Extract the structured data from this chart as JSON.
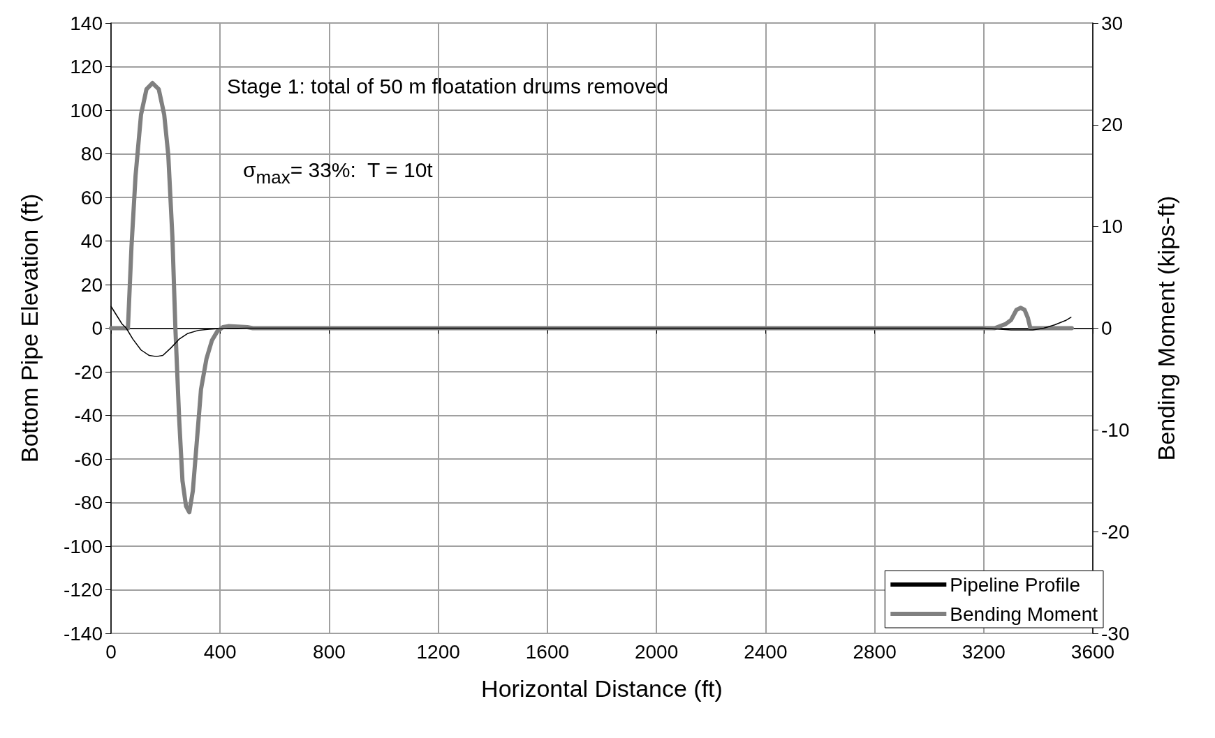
{
  "chart_data": {
    "type": "line",
    "xlabel": "Horizontal Distance (ft)",
    "ylabel": "Bottom Pipe Elevation (ft)",
    "y2label": "Bending Moment (kips-ft)",
    "annotations": [
      "Stage 1: total of 50 m floatation drums removed",
      "σ$_{max}$= 33%:  T = 10t"
    ],
    "xlim": [
      0,
      3600
    ],
    "xticks": [
      0,
      400,
      800,
      1200,
      1600,
      2000,
      2400,
      2800,
      3200,
      3600
    ],
    "ylim": [
      -140,
      140
    ],
    "yticks": [
      -140,
      -120,
      -100,
      -80,
      -60,
      -40,
      -20,
      0,
      20,
      40,
      60,
      80,
      100,
      120,
      140
    ],
    "y2lim": [
      -30,
      30
    ],
    "y2ticks": [
      -30,
      -20,
      -10,
      0,
      10,
      20,
      30
    ],
    "grid": true,
    "legend": "bottom right",
    "marker": "none",
    "line_style": "solid",
    "series": [
      {
        "name": "Pipeline Profile",
        "color": "#000000",
        "x": [
          0,
          20,
          40,
          56,
          80,
          110,
          140,
          166,
          190,
          220,
          250,
          280,
          320,
          360,
          400,
          500,
          3200,
          3300,
          3380,
          3420,
          3460,
          3500,
          3520
        ],
        "values": [
          10,
          6,
          2,
          0,
          -5,
          -10,
          -12.5,
          -13,
          -12.5,
          -9,
          -5,
          -2.5,
          -1,
          -0.5,
          -0.2,
          0,
          0,
          -0.8,
          -0.8,
          0,
          1.5,
          3.5,
          5
        ]
      },
      {
        "name": "Bending Moment",
        "color": "#808080",
        "axis": "y2",
        "x": [
          0,
          62,
          75,
          90,
          110,
          130,
          152,
          175,
          195,
          210,
          225,
          236,
          250,
          262,
          275,
          287,
          300,
          315,
          330,
          350,
          370,
          390,
          410,
          430,
          500,
          520,
          3240,
          3280,
          3300,
          3320,
          3336,
          3350,
          3362,
          3371,
          3523
        ],
        "values": [
          0,
          0,
          8,
          15,
          21,
          23.5,
          24.1,
          23.5,
          21,
          17,
          9,
          0,
          -9,
          -15,
          -17.5,
          -18.1,
          -16,
          -11,
          -6,
          -3,
          -1.2,
          -0.3,
          0.1,
          0.2,
          0.1,
          0,
          0,
          0.4,
          0.8,
          1.8,
          2.0,
          1.8,
          1.0,
          0,
          0
        ]
      }
    ]
  }
}
